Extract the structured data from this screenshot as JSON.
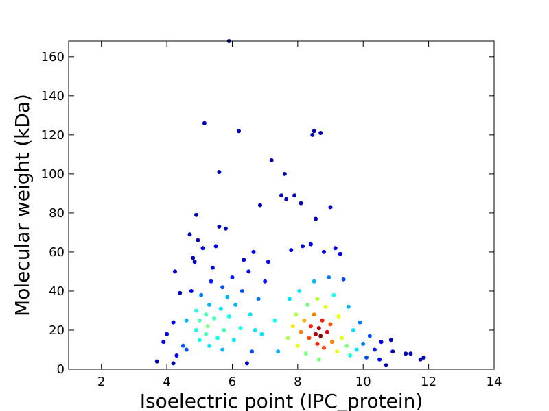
{
  "chart_data": {
    "type": "scatter",
    "title": "",
    "xlabel": "Isoelectric point (IPC_protein)",
    "ylabel": "Molecular weight (kDa)",
    "xlim": [
      1,
      14
    ],
    "ylim": [
      0,
      168
    ],
    "xticks": [
      2,
      4,
      6,
      8,
      10,
      12,
      14
    ],
    "yticks": [
      0,
      20,
      40,
      60,
      80,
      100,
      120,
      140,
      160
    ],
    "grid": false,
    "legend": "none",
    "color_scale": "jet, colored by point density (blue = sparse, dark red = dense)",
    "points": [
      [
        3.7,
        4,
        0.05
      ],
      [
        3.9,
        14,
        0.1
      ],
      [
        4.0,
        18,
        0.1
      ],
      [
        4.2,
        3,
        0.05
      ],
      [
        4.2,
        24,
        0.12
      ],
      [
        4.25,
        50,
        0.05
      ],
      [
        4.3,
        7,
        0.12
      ],
      [
        4.4,
        39,
        0.05
      ],
      [
        4.5,
        12,
        0.2
      ],
      [
        4.6,
        25,
        0.3
      ],
      [
        4.6,
        10,
        0.2
      ],
      [
        4.7,
        69,
        0.05
      ],
      [
        4.75,
        40,
        0.1
      ],
      [
        4.8,
        57,
        0.05
      ],
      [
        4.85,
        55,
        0.05
      ],
      [
        4.9,
        79,
        0.05
      ],
      [
        4.95,
        66,
        0.05
      ],
      [
        4.9,
        30,
        0.4
      ],
      [
        4.9,
        20,
        0.4
      ],
      [
        5.0,
        15,
        0.4
      ],
      [
        5.0,
        25,
        0.45
      ],
      [
        5.05,
        38,
        0.25
      ],
      [
        5.1,
        62,
        0.1
      ],
      [
        5.15,
        126,
        0.05
      ],
      [
        5.2,
        28,
        0.45
      ],
      [
        5.2,
        18,
        0.45
      ],
      [
        5.25,
        22,
        0.5
      ],
      [
        5.3,
        33,
        0.3
      ],
      [
        5.3,
        12,
        0.35
      ],
      [
        5.35,
        45,
        0.15
      ],
      [
        5.4,
        52,
        0.1
      ],
      [
        5.45,
        26,
        0.45
      ],
      [
        5.5,
        63,
        0.1
      ],
      [
        5.55,
        16,
        0.4
      ],
      [
        5.6,
        73,
        0.05
      ],
      [
        5.6,
        101,
        0.05
      ],
      [
        5.65,
        31,
        0.35
      ],
      [
        5.7,
        42,
        0.2
      ],
      [
        5.7,
        10,
        0.3
      ],
      [
        5.75,
        20,
        0.45
      ],
      [
        5.8,
        72,
        0.05
      ],
      [
        5.85,
        37,
        0.3
      ],
      [
        5.9,
        168,
        0.05
      ],
      [
        5.9,
        27,
        0.4
      ],
      [
        6.0,
        47,
        0.15
      ],
      [
        6.05,
        15,
        0.35
      ],
      [
        6.1,
        33,
        0.3
      ],
      [
        6.2,
        122,
        0.05
      ],
      [
        6.25,
        21,
        0.4
      ],
      [
        6.3,
        40,
        0.2
      ],
      [
        6.35,
        56,
        0.1
      ],
      [
        6.45,
        3,
        0.05
      ],
      [
        6.5,
        50,
        0.1
      ],
      [
        6.55,
        28,
        0.35
      ],
      [
        6.6,
        9,
        0.2
      ],
      [
        6.65,
        60,
        0.1
      ],
      [
        6.7,
        20,
        0.35
      ],
      [
        6.8,
        36,
        0.25
      ],
      [
        6.85,
        84,
        0.05
      ],
      [
        6.9,
        18,
        0.35
      ],
      [
        7.0,
        45,
        0.15
      ],
      [
        7.1,
        55,
        0.1
      ],
      [
        7.2,
        107,
        0.05
      ],
      [
        7.3,
        25,
        0.4
      ],
      [
        7.4,
        9,
        0.3
      ],
      [
        7.5,
        89,
        0.05
      ],
      [
        7.6,
        100,
        0.05
      ],
      [
        7.65,
        87,
        0.05
      ],
      [
        7.7,
        16,
        0.55
      ],
      [
        7.75,
        36,
        0.35
      ],
      [
        7.8,
        61,
        0.1
      ],
      [
        7.85,
        22,
        0.65
      ],
      [
        7.9,
        89,
        0.05
      ],
      [
        7.95,
        28,
        0.55
      ],
      [
        8.0,
        12,
        0.6
      ],
      [
        8.05,
        40,
        0.35
      ],
      [
        8.1,
        85,
        0.05
      ],
      [
        8.1,
        19,
        0.75
      ],
      [
        8.15,
        63,
        0.1
      ],
      [
        8.2,
        25,
        0.7
      ],
      [
        8.25,
        8,
        0.5
      ],
      [
        8.3,
        33,
        0.5
      ],
      [
        8.35,
        16,
        0.8
      ],
      [
        8.4,
        64,
        0.1
      ],
      [
        8.4,
        22,
        0.85
      ],
      [
        8.45,
        120,
        0.05
      ],
      [
        8.5,
        122,
        0.05
      ],
      [
        8.5,
        45,
        0.3
      ],
      [
        8.5,
        28,
        0.75
      ],
      [
        8.55,
        77,
        0.05
      ],
      [
        8.55,
        18,
        0.95
      ],
      [
        8.6,
        13,
        0.85
      ],
      [
        8.6,
        36,
        0.55
      ],
      [
        8.65,
        21,
        0.95
      ],
      [
        8.65,
        5,
        0.5
      ],
      [
        8.7,
        121,
        0.05
      ],
      [
        8.7,
        17,
        1.0
      ],
      [
        8.75,
        25,
        0.85
      ],
      [
        8.8,
        60,
        0.1
      ],
      [
        8.8,
        11,
        0.8
      ],
      [
        8.85,
        32,
        0.6
      ],
      [
        8.9,
        19,
        0.9
      ],
      [
        8.95,
        47,
        0.25
      ],
      [
        9.0,
        83,
        0.05
      ],
      [
        9.0,
        23,
        0.8
      ],
      [
        9.05,
        14,
        0.75
      ],
      [
        9.1,
        38,
        0.4
      ],
      [
        9.15,
        62,
        0.1
      ],
      [
        9.2,
        9,
        0.6
      ],
      [
        9.25,
        27,
        0.6
      ],
      [
        9.3,
        59,
        0.1
      ],
      [
        9.35,
        16,
        0.6
      ],
      [
        9.4,
        46,
        0.2
      ],
      [
        9.5,
        12,
        0.5
      ],
      [
        9.55,
        32,
        0.3
      ],
      [
        9.6,
        7,
        0.4
      ],
      [
        9.7,
        20,
        0.35
      ],
      [
        9.8,
        10,
        0.35
      ],
      [
        9.9,
        24,
        0.25
      ],
      [
        10.0,
        13,
        0.25
      ],
      [
        10.1,
        6,
        0.2
      ],
      [
        10.2,
        17,
        0.2
      ],
      [
        10.35,
        10,
        0.15
      ],
      [
        10.5,
        5,
        0.1
      ],
      [
        10.55,
        14,
        0.1
      ],
      [
        10.7,
        2,
        0.05
      ],
      [
        10.85,
        15,
        0.05
      ],
      [
        10.9,
        9,
        0.05
      ],
      [
        11.3,
        8,
        0.05
      ],
      [
        11.45,
        8,
        0.05
      ],
      [
        11.75,
        5,
        0.05
      ],
      [
        11.85,
        6,
        0.05
      ]
    ]
  }
}
